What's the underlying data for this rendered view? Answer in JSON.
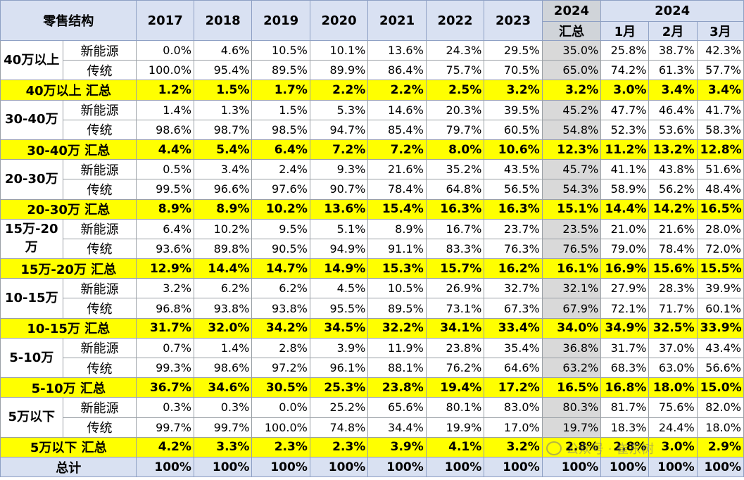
{
  "header": {
    "corner": "零售结构",
    "years": [
      "2017",
      "2018",
      "2019",
      "2020",
      "2021",
      "2022",
      "2023"
    ],
    "total_year": "2024",
    "total_label": "汇总",
    "month_group": "2024",
    "months": [
      "1月",
      "2月",
      "3月"
    ]
  },
  "segments": [
    {
      "name": "40万以上",
      "rows": [
        {
          "type": "新能源",
          "values": [
            "0.0%",
            "4.6%",
            "10.5%",
            "10.1%",
            "13.6%",
            "24.3%",
            "29.5%",
            "35.0%",
            "25.8%",
            "38.7%",
            "42.3%"
          ]
        },
        {
          "type": "传统",
          "values": [
            "100.0%",
            "95.4%",
            "89.5%",
            "89.9%",
            "86.4%",
            "75.7%",
            "70.5%",
            "65.0%",
            "74.2%",
            "61.3%",
            "57.7%"
          ]
        }
      ],
      "summary_label": "40万以上 汇总",
      "summary": [
        "1.2%",
        "1.5%",
        "1.7%",
        "2.2%",
        "2.2%",
        "2.5%",
        "3.2%",
        "3.2%",
        "3.0%",
        "3.4%",
        "3.4%"
      ]
    },
    {
      "name": "30-40万",
      "rows": [
        {
          "type": "新能源",
          "values": [
            "1.4%",
            "1.3%",
            "1.5%",
            "5.3%",
            "14.6%",
            "20.3%",
            "39.5%",
            "45.2%",
            "47.7%",
            "46.4%",
            "41.7%"
          ]
        },
        {
          "type": "传统",
          "values": [
            "98.6%",
            "98.7%",
            "98.5%",
            "94.7%",
            "85.4%",
            "79.7%",
            "60.5%",
            "54.8%",
            "52.3%",
            "53.6%",
            "58.3%"
          ]
        }
      ],
      "summary_label": "30-40万 汇总",
      "summary": [
        "4.4%",
        "5.4%",
        "6.4%",
        "7.2%",
        "7.2%",
        "8.0%",
        "10.6%",
        "12.3%",
        "11.2%",
        "13.2%",
        "12.8%"
      ]
    },
    {
      "name": "20-30万",
      "rows": [
        {
          "type": "新能源",
          "values": [
            "0.5%",
            "3.4%",
            "2.4%",
            "9.3%",
            "21.6%",
            "35.2%",
            "43.5%",
            "45.7%",
            "41.1%",
            "43.8%",
            "51.6%"
          ]
        },
        {
          "type": "传统",
          "values": [
            "99.5%",
            "96.6%",
            "97.6%",
            "90.7%",
            "78.4%",
            "64.8%",
            "56.5%",
            "54.3%",
            "58.9%",
            "56.2%",
            "48.4%"
          ]
        }
      ],
      "summary_label": "20-30万 汇总",
      "summary": [
        "8.9%",
        "8.9%",
        "10.2%",
        "13.6%",
        "15.4%",
        "16.3%",
        "16.3%",
        "15.1%",
        "14.4%",
        "14.2%",
        "16.5%"
      ]
    },
    {
      "name": "15万-20万",
      "rows": [
        {
          "type": "新能源",
          "values": [
            "6.4%",
            "10.2%",
            "9.5%",
            "5.1%",
            "8.9%",
            "16.7%",
            "23.7%",
            "23.5%",
            "21.0%",
            "21.6%",
            "28.0%"
          ]
        },
        {
          "type": "传统",
          "values": [
            "93.6%",
            "89.8%",
            "90.5%",
            "94.9%",
            "91.1%",
            "83.3%",
            "76.3%",
            "76.5%",
            "79.0%",
            "78.4%",
            "72.0%"
          ]
        }
      ],
      "summary_label": "15万-20万 汇总",
      "summary": [
        "12.9%",
        "14.4%",
        "14.7%",
        "14.9%",
        "15.3%",
        "15.7%",
        "16.2%",
        "16.1%",
        "16.9%",
        "15.6%",
        "15.5%"
      ]
    },
    {
      "name": "10-15万",
      "rows": [
        {
          "type": "新能源",
          "values": [
            "3.2%",
            "6.2%",
            "6.2%",
            "4.5%",
            "10.5%",
            "26.9%",
            "32.7%",
            "32.1%",
            "27.9%",
            "28.3%",
            "39.9%"
          ]
        },
        {
          "type": "传统",
          "values": [
            "96.8%",
            "93.8%",
            "93.8%",
            "95.5%",
            "89.5%",
            "73.1%",
            "67.3%",
            "67.9%",
            "72.1%",
            "71.7%",
            "60.1%"
          ]
        }
      ],
      "summary_label": "10-15万 汇总",
      "summary": [
        "31.7%",
        "32.0%",
        "34.2%",
        "34.5%",
        "32.2%",
        "34.1%",
        "33.4%",
        "34.0%",
        "34.9%",
        "32.5%",
        "33.9%"
      ]
    },
    {
      "name": "5-10万",
      "rows": [
        {
          "type": "新能源",
          "values": [
            "0.7%",
            "1.4%",
            "2.8%",
            "3.9%",
            "11.9%",
            "23.8%",
            "35.4%",
            "36.8%",
            "31.7%",
            "37.0%",
            "43.4%"
          ]
        },
        {
          "type": "传统",
          "values": [
            "99.3%",
            "98.6%",
            "97.2%",
            "96.1%",
            "88.1%",
            "76.2%",
            "64.6%",
            "63.2%",
            "68.3%",
            "63.0%",
            "56.6%"
          ]
        }
      ],
      "summary_label": "5-10万 汇总",
      "summary": [
        "36.7%",
        "34.6%",
        "30.5%",
        "25.3%",
        "23.8%",
        "19.4%",
        "17.2%",
        "16.5%",
        "16.8%",
        "18.0%",
        "15.0%"
      ]
    },
    {
      "name": "5万以下",
      "rows": [
        {
          "type": "新能源",
          "values": [
            "0.3%",
            "0.3%",
            "0.0%",
            "25.2%",
            "65.6%",
            "80.1%",
            "83.0%",
            "80.3%",
            "81.7%",
            "75.6%",
            "82.0%"
          ]
        },
        {
          "type": "传统",
          "values": [
            "99.7%",
            "99.7%",
            "100.0%",
            "74.8%",
            "34.4%",
            "19.9%",
            "17.0%",
            "19.7%",
            "18.3%",
            "24.4%",
            "18.0%"
          ]
        }
      ],
      "summary_label": "5万以下 汇总",
      "summary": [
        "4.2%",
        "3.3%",
        "2.3%",
        "2.3%",
        "3.9%",
        "4.1%",
        "3.2%",
        "2.8%",
        "2.8%",
        "3.0%",
        "2.9%"
      ]
    }
  ],
  "grand_total": {
    "label": "总计",
    "values": [
      "100%",
      "100%",
      "100%",
      "100%",
      "100%",
      "100%",
      "100%",
      "100%",
      "100%",
      "100%",
      "100%"
    ]
  },
  "watermark": "公众号 · 崔东树",
  "colors": {
    "header_bg": "#d9e1f2",
    "summary_bg": "#ffff00",
    "total_col_bg": "#d9d9d9"
  }
}
